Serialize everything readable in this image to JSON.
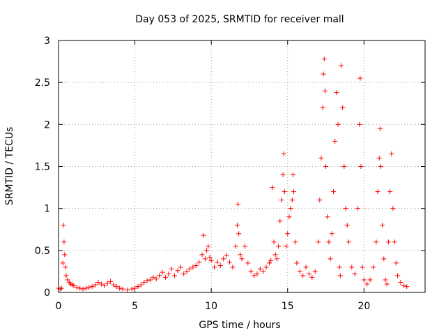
{
  "chart_data": {
    "type": "scatter",
    "title": "Day 053 of 2025, SRMTID for receiver mall",
    "xlabel": "GPS time / hours",
    "ylabel": "SRMTID / TECUs",
    "xlim": [
      0,
      24
    ],
    "ylim": [
      0,
      3
    ],
    "xticks": [
      0,
      5,
      10,
      15,
      20
    ],
    "xtick_labels": [
      "0",
      "5",
      "10",
      "15",
      "20"
    ],
    "yticks": [
      0,
      0.5,
      1,
      1.5,
      2,
      2.5,
      3
    ],
    "ytick_labels": [
      "0",
      "0.5",
      "1",
      "1.5",
      "2",
      "2.5",
      "3"
    ],
    "grid": true,
    "marker": "+",
    "color": "#ff0000",
    "series": [
      {
        "name": "SRMTID",
        "points": [
          [
            0.0,
            0.05
          ],
          [
            0.1,
            0.04
          ],
          [
            0.2,
            0.05
          ],
          [
            0.28,
            0.35
          ],
          [
            0.32,
            0.8
          ],
          [
            0.36,
            0.6
          ],
          [
            0.4,
            0.45
          ],
          [
            0.45,
            0.3
          ],
          [
            0.5,
            0.2
          ],
          [
            0.6,
            0.15
          ],
          [
            0.7,
            0.12
          ],
          [
            0.8,
            0.1
          ],
          [
            0.9,
            0.09
          ],
          [
            1.0,
            0.08
          ],
          [
            1.2,
            0.06
          ],
          [
            1.4,
            0.05
          ],
          [
            1.6,
            0.04
          ],
          [
            1.8,
            0.05
          ],
          [
            2.0,
            0.06
          ],
          [
            2.2,
            0.07
          ],
          [
            2.4,
            0.09
          ],
          [
            2.6,
            0.12
          ],
          [
            2.8,
            0.1
          ],
          [
            3.0,
            0.08
          ],
          [
            3.2,
            0.11
          ],
          [
            3.4,
            0.13
          ],
          [
            3.6,
            0.09
          ],
          [
            3.8,
            0.07
          ],
          [
            4.0,
            0.05
          ],
          [
            4.2,
            0.04
          ],
          [
            4.5,
            0.03
          ],
          [
            4.8,
            0.04
          ],
          [
            5.0,
            0.05
          ],
          [
            5.2,
            0.07
          ],
          [
            5.4,
            0.09
          ],
          [
            5.6,
            0.12
          ],
          [
            5.8,
            0.14
          ],
          [
            6.0,
            0.15
          ],
          [
            6.2,
            0.18
          ],
          [
            6.4,
            0.16
          ],
          [
            6.6,
            0.2
          ],
          [
            6.8,
            0.24
          ],
          [
            7.0,
            0.18
          ],
          [
            7.2,
            0.22
          ],
          [
            7.4,
            0.28
          ],
          [
            7.6,
            0.2
          ],
          [
            7.8,
            0.26
          ],
          [
            8.0,
            0.3
          ],
          [
            8.2,
            0.22
          ],
          [
            8.4,
            0.25
          ],
          [
            8.6,
            0.28
          ],
          [
            8.8,
            0.3
          ],
          [
            9.0,
            0.32
          ],
          [
            9.2,
            0.36
          ],
          [
            9.4,
            0.45
          ],
          [
            9.5,
            0.68
          ],
          [
            9.6,
            0.4
          ],
          [
            9.7,
            0.5
          ],
          [
            9.8,
            0.55
          ],
          [
            9.9,
            0.42
          ],
          [
            10.0,
            0.38
          ],
          [
            10.2,
            0.3
          ],
          [
            10.4,
            0.36
          ],
          [
            10.6,
            0.32
          ],
          [
            10.8,
            0.4
          ],
          [
            11.0,
            0.44
          ],
          [
            11.2,
            0.36
          ],
          [
            11.4,
            0.3
          ],
          [
            11.6,
            0.55
          ],
          [
            11.7,
            0.8
          ],
          [
            11.75,
            1.05
          ],
          [
            11.8,
            0.7
          ],
          [
            11.9,
            0.45
          ],
          [
            12.0,
            0.4
          ],
          [
            12.2,
            0.55
          ],
          [
            12.4,
            0.35
          ],
          [
            12.6,
            0.25
          ],
          [
            12.8,
            0.2
          ],
          [
            13.0,
            0.22
          ],
          [
            13.2,
            0.28
          ],
          [
            13.4,
            0.25
          ],
          [
            13.6,
            0.3
          ],
          [
            13.8,
            0.35
          ],
          [
            13.9,
            0.38
          ],
          [
            14.0,
            1.25
          ],
          [
            14.1,
            0.6
          ],
          [
            14.2,
            0.45
          ],
          [
            14.3,
            0.4
          ],
          [
            14.4,
            0.55
          ],
          [
            14.5,
            0.85
          ],
          [
            14.6,
            1.1
          ],
          [
            14.7,
            1.4
          ],
          [
            14.75,
            1.65
          ],
          [
            14.8,
            1.2
          ],
          [
            14.9,
            0.55
          ],
          [
            15.0,
            0.7
          ],
          [
            15.1,
            0.9
          ],
          [
            15.2,
            1.0
          ],
          [
            15.3,
            1.1
          ],
          [
            15.35,
            1.4
          ],
          [
            15.4,
            1.2
          ],
          [
            15.5,
            0.6
          ],
          [
            15.6,
            0.35
          ],
          [
            15.8,
            0.25
          ],
          [
            16.0,
            0.2
          ],
          [
            16.2,
            0.3
          ],
          [
            16.4,
            0.22
          ],
          [
            16.6,
            0.18
          ],
          [
            16.8,
            0.25
          ],
          [
            17.0,
            0.6
          ],
          [
            17.1,
            1.1
          ],
          [
            17.2,
            1.6
          ],
          [
            17.3,
            2.2
          ],
          [
            17.35,
            2.6
          ],
          [
            17.4,
            2.78
          ],
          [
            17.45,
            2.4
          ],
          [
            17.5,
            1.5
          ],
          [
            17.6,
            0.9
          ],
          [
            17.7,
            0.6
          ],
          [
            17.8,
            0.4
          ],
          [
            17.9,
            0.7
          ],
          [
            18.0,
            1.2
          ],
          [
            18.1,
            1.8
          ],
          [
            18.2,
            2.38
          ],
          [
            18.3,
            2.0
          ],
          [
            18.4,
            0.3
          ],
          [
            18.45,
            0.2
          ],
          [
            18.5,
            2.7
          ],
          [
            18.6,
            2.2
          ],
          [
            18.7,
            1.5
          ],
          [
            18.8,
            1.0
          ],
          [
            18.9,
            0.8
          ],
          [
            19.0,
            0.6
          ],
          [
            19.2,
            0.3
          ],
          [
            19.4,
            0.22
          ],
          [
            19.6,
            1.0
          ],
          [
            19.7,
            2.0
          ],
          [
            19.75,
            2.55
          ],
          [
            19.8,
            1.5
          ],
          [
            19.9,
            0.3
          ],
          [
            20.0,
            0.15
          ],
          [
            20.2,
            0.1
          ],
          [
            20.4,
            0.15
          ],
          [
            20.6,
            0.3
          ],
          [
            20.8,
            0.6
          ],
          [
            20.9,
            1.2
          ],
          [
            21.0,
            1.6
          ],
          [
            21.05,
            1.95
          ],
          [
            21.1,
            1.5
          ],
          [
            21.2,
            0.8
          ],
          [
            21.3,
            0.4
          ],
          [
            21.4,
            0.15
          ],
          [
            21.5,
            0.1
          ],
          [
            21.6,
            0.6
          ],
          [
            21.7,
            1.2
          ],
          [
            21.8,
            1.65
          ],
          [
            21.9,
            1.0
          ],
          [
            22.0,
            0.6
          ],
          [
            22.1,
            0.35
          ],
          [
            22.2,
            0.2
          ],
          [
            22.4,
            0.12
          ],
          [
            22.6,
            0.08
          ],
          [
            22.8,
            0.07
          ]
        ]
      }
    ]
  }
}
